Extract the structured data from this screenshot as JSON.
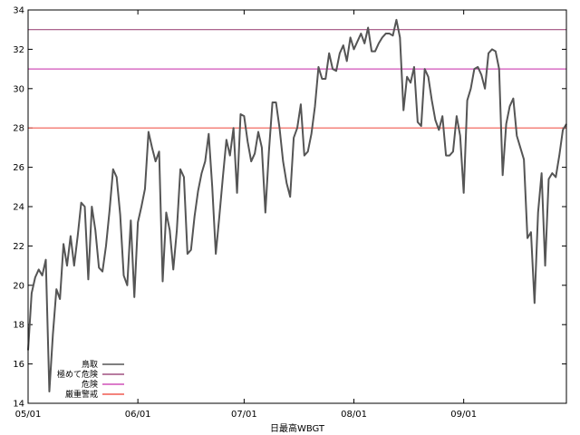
{
  "chart_data": {
    "type": "line",
    "title": "",
    "xlabel": "日最高WBGT",
    "ylabel": "",
    "ylim": [
      14,
      34
    ],
    "xlim": [
      "2023-05-01",
      "2023-09-30"
    ],
    "x_tick_labels": [
      "05/01",
      "06/01",
      "07/01",
      "08/01",
      "09/01"
    ],
    "y_ticks": [
      14,
      16,
      18,
      20,
      22,
      24,
      26,
      28,
      30,
      32,
      34
    ],
    "grid": false,
    "legend_position": "bottom-left",
    "thresholds": [
      {
        "name": "極めて危険",
        "value": 33,
        "color": "#a05080"
      },
      {
        "name": "危険",
        "value": 31,
        "color": "#d050b8"
      },
      {
        "name": "厳重警戒",
        "value": 28,
        "color": "#f05a50"
      }
    ],
    "series": [
      {
        "name": "鳥取",
        "color": "#555555",
        "x": [
          "2023-05-01",
          "2023-05-02",
          "2023-05-03",
          "2023-05-04",
          "2023-05-05",
          "2023-05-06",
          "2023-05-07",
          "2023-05-08",
          "2023-05-09",
          "2023-05-10",
          "2023-05-11",
          "2023-05-12",
          "2023-05-13",
          "2023-05-14",
          "2023-05-15",
          "2023-05-16",
          "2023-05-17",
          "2023-05-18",
          "2023-05-19",
          "2023-05-20",
          "2023-05-21",
          "2023-05-22",
          "2023-05-23",
          "2023-05-24",
          "2023-05-25",
          "2023-05-26",
          "2023-05-27",
          "2023-05-28",
          "2023-05-29",
          "2023-05-30",
          "2023-05-31",
          "2023-06-01",
          "2023-06-02",
          "2023-06-03",
          "2023-06-04",
          "2023-06-05",
          "2023-06-06",
          "2023-06-07",
          "2023-06-08",
          "2023-06-09",
          "2023-06-10",
          "2023-06-11",
          "2023-06-12",
          "2023-06-13",
          "2023-06-14",
          "2023-06-15",
          "2023-06-16",
          "2023-06-17",
          "2023-06-18",
          "2023-06-19",
          "2023-06-20",
          "2023-06-21",
          "2023-06-22",
          "2023-06-23",
          "2023-06-24",
          "2023-06-25",
          "2023-06-26",
          "2023-06-27",
          "2023-06-28",
          "2023-06-29",
          "2023-06-30",
          "2023-07-01",
          "2023-07-02",
          "2023-07-03",
          "2023-07-04",
          "2023-07-05",
          "2023-07-06",
          "2023-07-07",
          "2023-07-08",
          "2023-07-09",
          "2023-07-10",
          "2023-07-11",
          "2023-07-12",
          "2023-07-13",
          "2023-07-14",
          "2023-07-15",
          "2023-07-16",
          "2023-07-17",
          "2023-07-18",
          "2023-07-19",
          "2023-07-20",
          "2023-07-21",
          "2023-07-22",
          "2023-07-23",
          "2023-07-24",
          "2023-07-25",
          "2023-07-26",
          "2023-07-27",
          "2023-07-28",
          "2023-07-29",
          "2023-07-30",
          "2023-07-31",
          "2023-08-01",
          "2023-08-02",
          "2023-08-03",
          "2023-08-04",
          "2023-08-05",
          "2023-08-06",
          "2023-08-07",
          "2023-08-08",
          "2023-08-09",
          "2023-08-10",
          "2023-08-11",
          "2023-08-12",
          "2023-08-13",
          "2023-08-14",
          "2023-08-15",
          "2023-08-16",
          "2023-08-17",
          "2023-08-18",
          "2023-08-19",
          "2023-08-20",
          "2023-08-21",
          "2023-08-22",
          "2023-08-23",
          "2023-08-24",
          "2023-08-25",
          "2023-08-26",
          "2023-08-27",
          "2023-08-28",
          "2023-08-29",
          "2023-08-30",
          "2023-08-31",
          "2023-09-01",
          "2023-09-02",
          "2023-09-03",
          "2023-09-04",
          "2023-09-05",
          "2023-09-06",
          "2023-09-07",
          "2023-09-08",
          "2023-09-09",
          "2023-09-10",
          "2023-09-11",
          "2023-09-12",
          "2023-09-13",
          "2023-09-14",
          "2023-09-15",
          "2023-09-16",
          "2023-09-17",
          "2023-09-18",
          "2023-09-19",
          "2023-09-20",
          "2023-09-21",
          "2023-09-22",
          "2023-09-23",
          "2023-09-24",
          "2023-09-25",
          "2023-09-26",
          "2023-09-27",
          "2023-09-28",
          "2023-09-29",
          "2023-09-30"
        ],
        "values": [
          16.7,
          19.6,
          20.4,
          20.8,
          20.5,
          21.3,
          14.6,
          17.5,
          19.8,
          19.3,
          22.1,
          21.0,
          22.5,
          21.0,
          22.5,
          24.2,
          24.0,
          20.3,
          24.0,
          22.8,
          20.9,
          20.7,
          22.0,
          23.8,
          25.9,
          25.5,
          23.6,
          20.5,
          20.0,
          23.3,
          19.4,
          23.2,
          24.0,
          24.9,
          27.8,
          27.0,
          26.3,
          26.8,
          20.2,
          23.7,
          22.8,
          20.8,
          22.8,
          25.9,
          25.5,
          21.6,
          21.8,
          23.5,
          24.8,
          25.7,
          26.3,
          27.7,
          25.0,
          21.6,
          23.5,
          25.5,
          27.4,
          26.6,
          28.0,
          24.7,
          28.7,
          28.6,
          27.3,
          26.3,
          26.7,
          27.8,
          27.0,
          23.7,
          26.8,
          29.3,
          29.3,
          28.0,
          26.3,
          25.2,
          24.5,
          27.5,
          28.0,
          29.2,
          26.6,
          26.8,
          27.7,
          29.1,
          31.1,
          30.5,
          30.5,
          31.8,
          31.0,
          30.9,
          31.8,
          32.2,
          31.4,
          32.6,
          32.0,
          32.4,
          32.8,
          32.3,
          33.1,
          31.9,
          31.9,
          32.3,
          32.6,
          32.8,
          32.8,
          32.7,
          33.5,
          32.6,
          28.9,
          30.6,
          30.3,
          31.1,
          28.3,
          28.1,
          31.0,
          30.6,
          29.4,
          28.4,
          27.9,
          28.6,
          26.6,
          26.6,
          26.8,
          28.6,
          27.6,
          24.7,
          29.4,
          30.0,
          31.0,
          31.1,
          30.7,
          30.0,
          31.8,
          32.0,
          31.9,
          31.0,
          25.6,
          28.2,
          29.1,
          29.5,
          27.6,
          27.0,
          26.4,
          22.4,
          22.7,
          19.1,
          23.7,
          25.7,
          21.0,
          25.4,
          25.7,
          25.5,
          26.6,
          27.9,
          28.2
        ]
      }
    ]
  }
}
